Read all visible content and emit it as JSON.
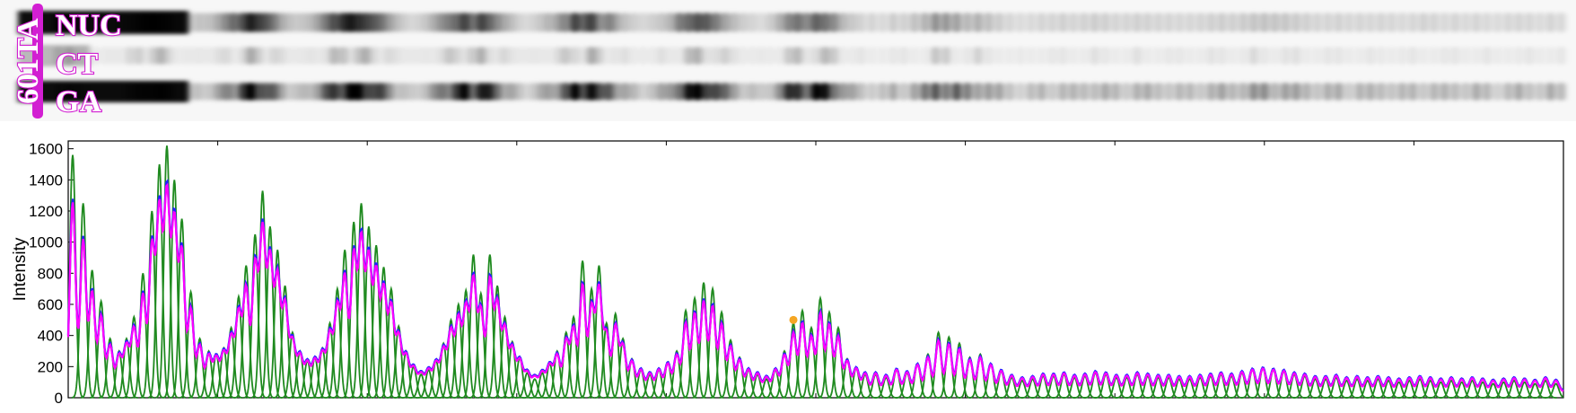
{
  "gel": {
    "sample_label": "601TA",
    "lanes": [
      {
        "name": "NUC",
        "color": "#000000"
      },
      {
        "name": "CT",
        "color": "#000000"
      },
      {
        "name": "GA",
        "color": "#000000"
      }
    ],
    "label_color": "#d21fd2"
  },
  "chart_data": {
    "type": "line",
    "title": "",
    "xlabel": "",
    "ylabel": "Intensity",
    "ylim": [
      0,
      1650
    ],
    "yticks": [
      0,
      200,
      400,
      600,
      800,
      1000,
      1200,
      1400,
      1600
    ],
    "xlim": [
      0,
      100
    ],
    "grid": false,
    "series": [
      {
        "role": "envelope",
        "color": "#ff00ff"
      },
      {
        "role": "observed",
        "color": "#2222ff"
      },
      {
        "role": "fitted-peaks",
        "color": "#1f8a1f"
      }
    ],
    "peaks": [
      [
        0.3,
        1560
      ],
      [
        1.0,
        1250
      ],
      [
        1.6,
        820
      ],
      [
        2.2,
        620
      ],
      [
        2.8,
        380
      ],
      [
        3.4,
        300
      ],
      [
        3.9,
        380
      ],
      [
        4.4,
        520
      ],
      [
        5.0,
        800
      ],
      [
        5.6,
        1200
      ],
      [
        6.1,
        1500
      ],
      [
        6.6,
        1620
      ],
      [
        7.1,
        1400
      ],
      [
        7.6,
        1150
      ],
      [
        8.2,
        680
      ],
      [
        8.8,
        380
      ],
      [
        9.4,
        300
      ],
      [
        9.9,
        280
      ],
      [
        10.4,
        320
      ],
      [
        10.9,
        450
      ],
      [
        11.4,
        650
      ],
      [
        11.9,
        850
      ],
      [
        12.5,
        1050
      ],
      [
        13.0,
        1330
      ],
      [
        13.5,
        1100
      ],
      [
        14.0,
        950
      ],
      [
        14.5,
        720
      ],
      [
        15.0,
        420
      ],
      [
        15.5,
        300
      ],
      [
        16.0,
        240
      ],
      [
        16.5,
        260
      ],
      [
        17.0,
        320
      ],
      [
        17.5,
        480
      ],
      [
        18.0,
        700
      ],
      [
        18.5,
        950
      ],
      [
        19.1,
        1130
      ],
      [
        19.6,
        1250
      ],
      [
        20.1,
        1100
      ],
      [
        20.6,
        980
      ],
      [
        21.1,
        840
      ],
      [
        21.6,
        700
      ],
      [
        22.1,
        460
      ],
      [
        22.6,
        300
      ],
      [
        23.1,
        200
      ],
      [
        23.6,
        150
      ],
      [
        24.1,
        180
      ],
      [
        24.6,
        240
      ],
      [
        25.1,
        350
      ],
      [
        25.6,
        500
      ],
      [
        26.1,
        600
      ],
      [
        26.6,
        690
      ],
      [
        27.1,
        920
      ],
      [
        27.6,
        670
      ],
      [
        28.2,
        920
      ],
      [
        28.7,
        720
      ],
      [
        29.2,
        520
      ],
      [
        29.7,
        360
      ],
      [
        30.2,
        260
      ],
      [
        30.7,
        160
      ],
      [
        31.2,
        120
      ],
      [
        31.7,
        160
      ],
      [
        32.2,
        220
      ],
      [
        32.7,
        300
      ],
      [
        33.3,
        420
      ],
      [
        33.8,
        520
      ],
      [
        34.4,
        880
      ],
      [
        35.0,
        700
      ],
      [
        35.5,
        850
      ],
      [
        36.0,
        480
      ],
      [
        36.6,
        540
      ],
      [
        37.1,
        380
      ],
      [
        37.7,
        250
      ],
      [
        38.3,
        180
      ],
      [
        38.9,
        150
      ],
      [
        39.5,
        180
      ],
      [
        40.1,
        230
      ],
      [
        40.7,
        300
      ],
      [
        41.3,
        560
      ],
      [
        41.9,
        640
      ],
      [
        42.5,
        740
      ],
      [
        43.1,
        700
      ],
      [
        43.7,
        550
      ],
      [
        44.3,
        370
      ],
      [
        44.9,
        260
      ],
      [
        45.5,
        180
      ],
      [
        46.1,
        150
      ],
      [
        46.7,
        120
      ],
      [
        47.3,
        180
      ],
      [
        47.9,
        300
      ],
      [
        48.5,
        480
      ],
      [
        49.1,
        560
      ],
      [
        49.7,
        450
      ],
      [
        50.3,
        640
      ],
      [
        50.9,
        550
      ],
      [
        51.5,
        450
      ],
      [
        52.1,
        250
      ],
      [
        52.7,
        190
      ],
      [
        53.3,
        150
      ],
      [
        54.0,
        150
      ],
      [
        54.7,
        130
      ],
      [
        55.4,
        180
      ],
      [
        56.1,
        160
      ],
      [
        56.8,
        220
      ],
      [
        57.5,
        280
      ],
      [
        58.2,
        420
      ],
      [
        58.9,
        390
      ],
      [
        59.6,
        350
      ],
      [
        60.3,
        260
      ],
      [
        61.0,
        280
      ],
      [
        61.7,
        220
      ],
      [
        62.4,
        170
      ],
      [
        63.1,
        130
      ],
      [
        63.8,
        110
      ],
      [
        64.5,
        120
      ],
      [
        65.2,
        140
      ],
      [
        65.9,
        140
      ],
      [
        66.6,
        150
      ],
      [
        67.3,
        130
      ],
      [
        68.0,
        140
      ],
      [
        68.7,
        160
      ],
      [
        69.4,
        150
      ],
      [
        70.1,
        130
      ],
      [
        70.8,
        130
      ],
      [
        71.5,
        150
      ],
      [
        72.2,
        140
      ],
      [
        72.9,
        130
      ],
      [
        73.6,
        130
      ],
      [
        74.3,
        120
      ],
      [
        75.0,
        120
      ],
      [
        75.7,
        130
      ],
      [
        76.4,
        140
      ],
      [
        77.1,
        150
      ],
      [
        77.8,
        140
      ],
      [
        78.5,
        160
      ],
      [
        79.2,
        180
      ],
      [
        79.9,
        190
      ],
      [
        80.6,
        180
      ],
      [
        81.3,
        170
      ],
      [
        82.0,
        150
      ],
      [
        82.7,
        140
      ],
      [
        83.4,
        120
      ],
      [
        84.1,
        120
      ],
      [
        84.8,
        130
      ],
      [
        85.5,
        110
      ],
      [
        86.2,
        120
      ],
      [
        86.9,
        110
      ],
      [
        87.6,
        120
      ],
      [
        88.3,
        110
      ],
      [
        89.0,
        100
      ],
      [
        89.7,
        110
      ],
      [
        90.4,
        120
      ],
      [
        91.1,
        110
      ],
      [
        91.8,
        100
      ],
      [
        92.5,
        110
      ],
      [
        93.2,
        100
      ],
      [
        93.9,
        110
      ],
      [
        94.6,
        100
      ],
      [
        95.3,
        90
      ],
      [
        96.0,
        100
      ],
      [
        96.7,
        110
      ],
      [
        97.4,
        100
      ],
      [
        98.1,
        90
      ],
      [
        98.8,
        110
      ],
      [
        99.5,
        90
      ]
    ],
    "marker": {
      "x": 48.5,
      "y": 500,
      "color": "#f5a623"
    }
  }
}
